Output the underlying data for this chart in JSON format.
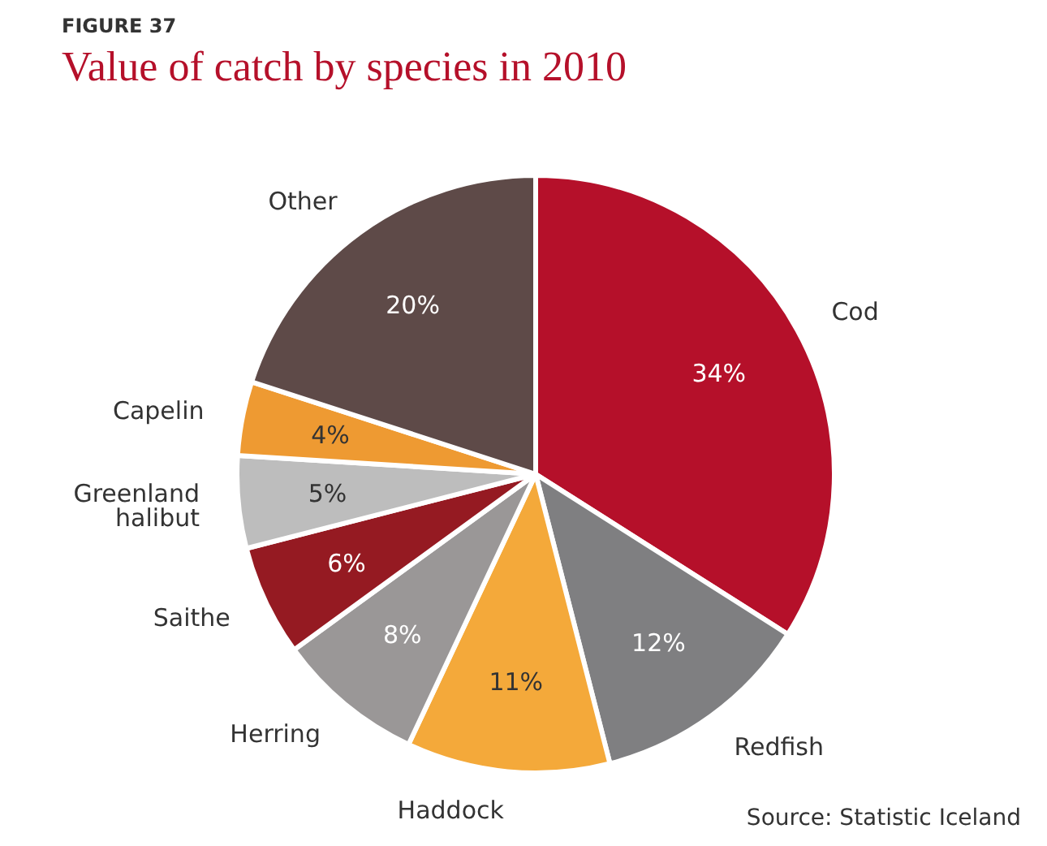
{
  "chart_data": {
    "type": "pie",
    "subtitle": "FIGURE 37",
    "title": "Value of catch by species in 2010",
    "categories": [
      "Cod",
      "Redfish",
      "Haddock",
      "Herring",
      "Saithe",
      "Greenland halibut",
      "Capelin",
      "Other"
    ],
    "values": [
      34,
      12,
      11,
      8,
      6,
      5,
      4,
      20
    ],
    "value_labels": [
      "34%",
      "12%",
      "11%",
      "8%",
      "6%",
      "5%",
      "4%",
      "20%"
    ],
    "colors": [
      "#b5102a",
      "#7f7f81",
      "#f4a93a",
      "#9a9797",
      "#951a22",
      "#bdbdbd",
      "#ee9a32",
      "#5e4a48"
    ],
    "annotations": [
      "Source: Statistic Iceland"
    ]
  }
}
